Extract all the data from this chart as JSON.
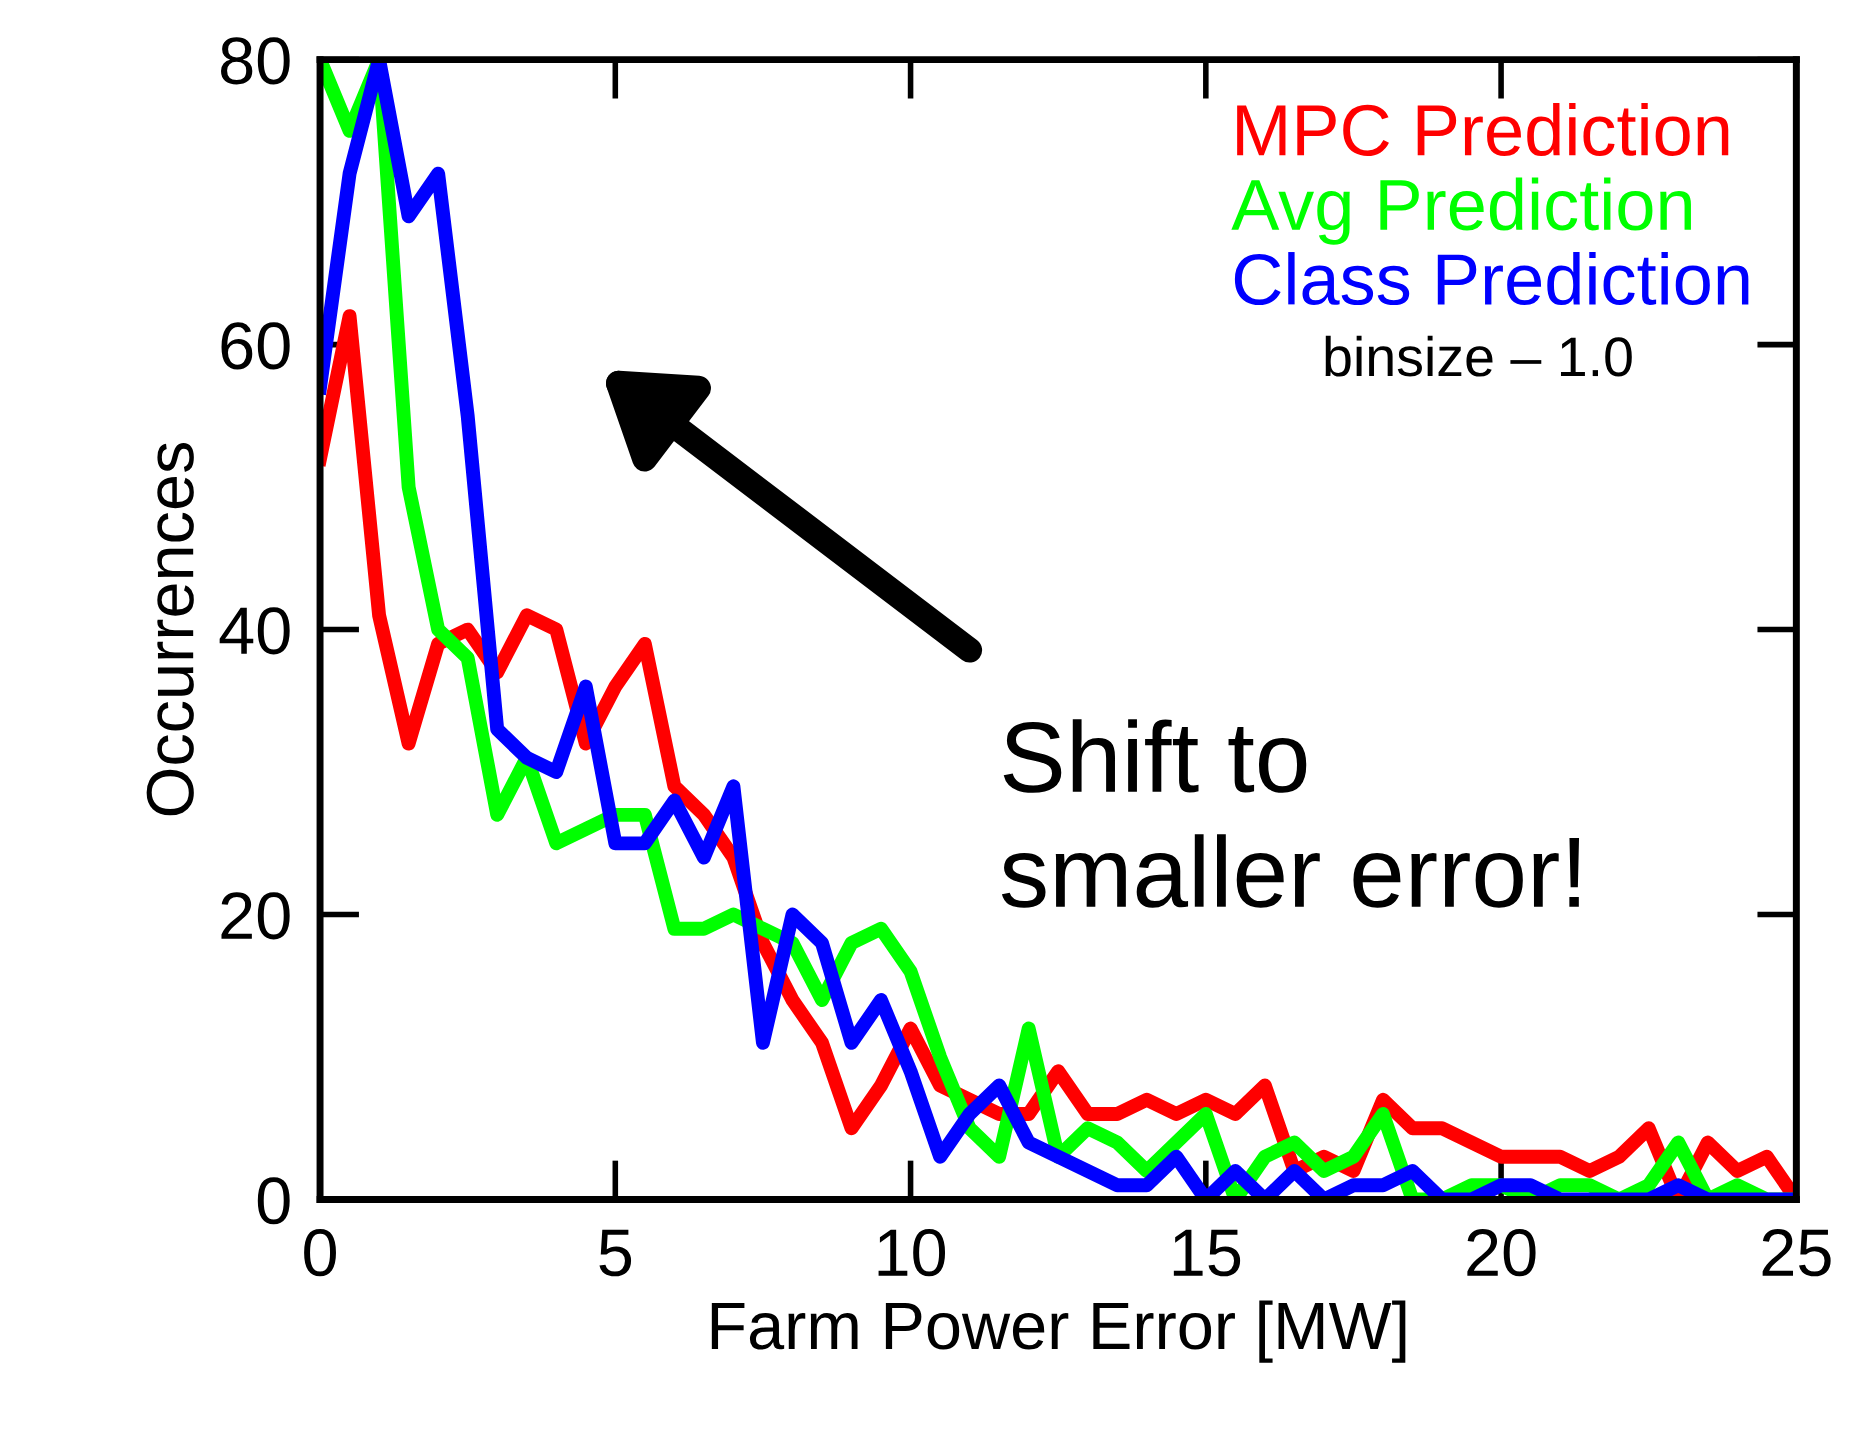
{
  "chart_data": {
    "type": "line",
    "xlabel": "Farm Power Error [MW]",
    "ylabel": "Occurrences",
    "x": [
      0,
      0.5,
      1,
      1.5,
      2,
      2.5,
      3,
      3.5,
      4,
      4.5,
      5,
      5.5,
      6,
      6.5,
      7,
      7.5,
      8,
      8.5,
      9,
      9.5,
      10,
      10.5,
      11,
      11.5,
      12,
      12.5,
      13,
      13.5,
      14,
      14.5,
      15,
      15.5,
      16,
      16.5,
      17,
      17.5,
      18,
      18.5,
      19,
      19.5,
      20,
      20.5,
      21,
      21.5,
      22,
      22.5,
      23,
      23.5,
      24,
      24.5,
      25
    ],
    "series": [
      {
        "name": "MPC Prediction",
        "color": "#ff0000",
        "values": [
          52,
          62,
          41,
          32,
          39,
          40,
          37,
          41,
          40,
          32,
          36,
          39,
          29,
          27,
          24,
          18,
          14,
          11,
          5,
          8,
          12,
          8,
          7,
          6,
          6,
          9,
          6,
          6,
          7,
          6,
          7,
          6,
          8,
          2,
          3,
          2,
          7,
          5,
          5,
          4,
          3,
          3,
          3,
          2,
          3,
          5,
          0,
          4,
          2,
          3,
          0
        ]
      },
      {
        "name": "Avg Prediction",
        "color": "#00ff00",
        "values": [
          80,
          75,
          80,
          50,
          40,
          38,
          27,
          31,
          25,
          26,
          27,
          27,
          19,
          19,
          20,
          19,
          18,
          14,
          18,
          19,
          16,
          10,
          5,
          3,
          12,
          3,
          5,
          4,
          2,
          4,
          6,
          0,
          3,
          4,
          2,
          3,
          6,
          0,
          0,
          1,
          1,
          0,
          1,
          1,
          0,
          1,
          4,
          0,
          1,
          0,
          0
        ]
      },
      {
        "name": "Class Prediction",
        "color": "#0000ff",
        "values": [
          57,
          72,
          80,
          69,
          72,
          55,
          33,
          31,
          30,
          36,
          25,
          25,
          28,
          24,
          29,
          11,
          20,
          18,
          11,
          14,
          9,
          3,
          6,
          8,
          4,
          3,
          2,
          1,
          1,
          3,
          0,
          2,
          0,
          2,
          0,
          1,
          1,
          2,
          0,
          0,
          1,
          1,
          0,
          0,
          0,
          0,
          1,
          0,
          0,
          0,
          0
        ]
      }
    ],
    "xlim": [
      0,
      25
    ],
    "xticks": [
      0,
      5,
      10,
      15,
      20,
      25
    ],
    "ylim": [
      0,
      80
    ],
    "yticks": [
      0,
      20,
      40,
      60,
      80
    ],
    "legend": "top right",
    "grid": false,
    "marker": "none",
    "line_style": "solid",
    "annotations": [
      "binsize – 1.0",
      "Shift to\nsmaller error!"
    ]
  }
}
